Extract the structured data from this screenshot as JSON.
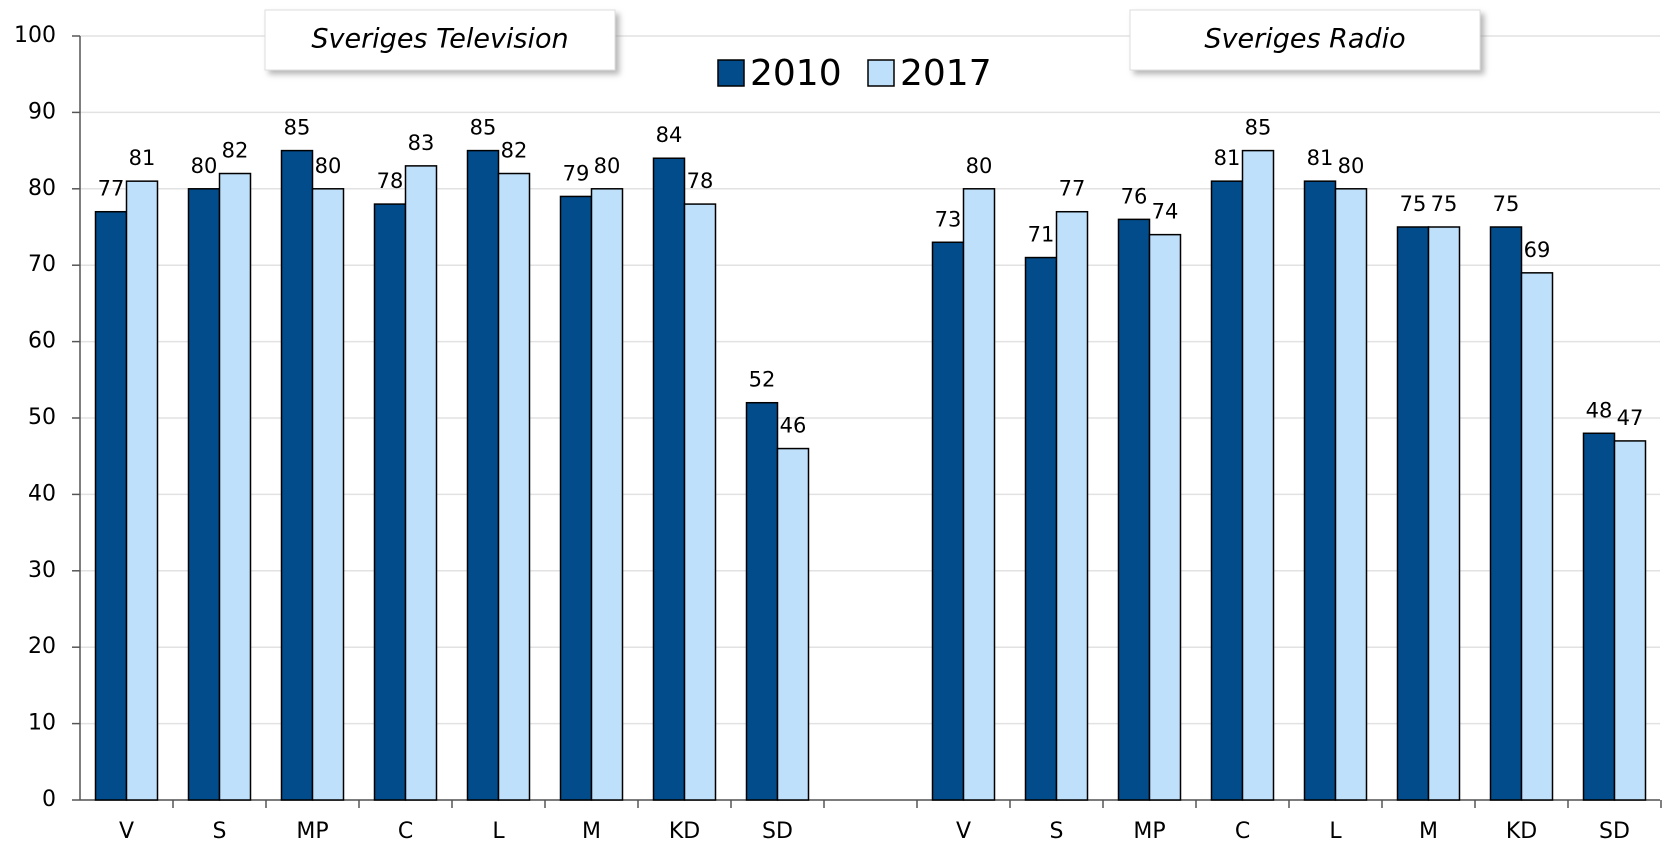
{
  "chart_data": {
    "type": "bar",
    "annotations": [
      "Sveriges Television",
      "Sveriges Radio"
    ],
    "categories": [
      "V",
      "S",
      "MP",
      "C",
      "L",
      "M",
      "KD",
      "SD",
      null,
      "V",
      "S",
      "MP",
      "C",
      "L",
      "M",
      "KD",
      "SD"
    ],
    "series": [
      {
        "name": "2010",
        "color": "#034c8c",
        "values": [
          77,
          80,
          85,
          78,
          85,
          79,
          84,
          52,
          null,
          73,
          71,
          76,
          81,
          81,
          75,
          75,
          48
        ]
      },
      {
        "name": "2017",
        "color": "#bfe0fa",
        "values": [
          81,
          82,
          80,
          83,
          82,
          80,
          78,
          46,
          null,
          80,
          77,
          74,
          85,
          80,
          75,
          69,
          47
        ]
      }
    ],
    "ylim": [
      0,
      100
    ],
    "yticks": [
      0,
      10,
      20,
      30,
      40,
      50,
      60,
      70,
      80,
      90,
      100
    ],
    "grid": true
  }
}
